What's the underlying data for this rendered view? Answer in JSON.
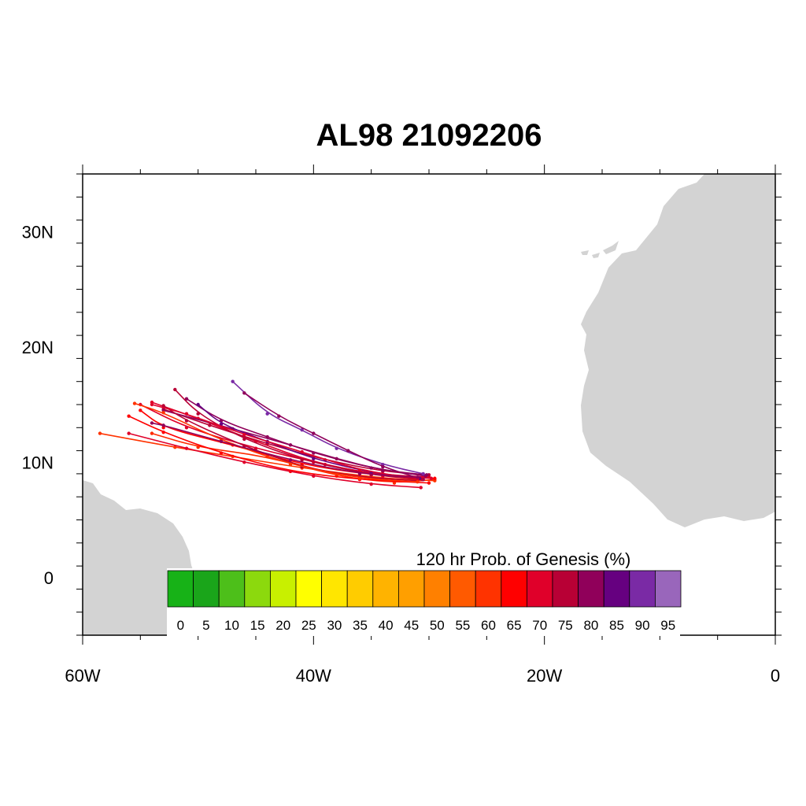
{
  "title": "AL98 21092206",
  "map": {
    "lon_range": [
      -60,
      0
    ],
    "lat_range": [
      -5,
      35
    ],
    "land_color": "#d3d3d3",
    "ocean_color": "#ffffff",
    "x_ticks": [
      {
        "lon": -60,
        "label": "60W"
      },
      {
        "lon": -40,
        "label": "40W"
      },
      {
        "lon": -20,
        "label": "20W"
      },
      {
        "lon": 0,
        "label": "0"
      }
    ],
    "y_ticks": [
      {
        "lat": 30,
        "label": "30N"
      },
      {
        "lat": 20,
        "label": "20N"
      },
      {
        "lat": 10,
        "label": "10N"
      },
      {
        "lat": 0,
        "label": "0"
      }
    ]
  },
  "colorbar": {
    "title": "120 hr Prob. of Genesis (%)",
    "labels": [
      "0",
      "5",
      "10",
      "15",
      "20",
      "25",
      "30",
      "35",
      "40",
      "45",
      "50",
      "55",
      "60",
      "65",
      "70",
      "75",
      "80",
      "85",
      "90",
      "95"
    ],
    "colors": [
      "#17b217",
      "#1aa51a",
      "#4dbf1a",
      "#8cd90d",
      "#c8f000",
      "#ffff00",
      "#ffe600",
      "#ffcc00",
      "#ffb300",
      "#ff9f00",
      "#ff8000",
      "#ff5a00",
      "#ff3300",
      "#ff0000",
      "#e0002a",
      "#b80035",
      "#90005a",
      "#660080",
      "#7a2aa5",
      "#9966bb"
    ]
  },
  "chart_data": {
    "type": "scatter",
    "title": "AL98 21092206",
    "description_units": "lon (deg E), lat (deg N)",
    "tracks": [
      {
        "color": "#ff2a00",
        "points": [
          [
            -29.5,
            8.5
          ],
          [
            -33,
            8.2
          ],
          [
            -38,
            8.8
          ],
          [
            -44,
            10.5
          ],
          [
            -50,
            11.3
          ],
          [
            -54,
            12.5
          ]
        ]
      },
      {
        "color": "#ff3300",
        "points": [
          [
            -29.5,
            8.4
          ],
          [
            -34,
            8.6
          ],
          [
            -41,
            9.5
          ],
          [
            -47,
            10.5
          ],
          [
            -52,
            11.3
          ],
          [
            -58.5,
            12.5
          ]
        ]
      },
      {
        "color": "#ff0000",
        "points": [
          [
            -29.5,
            8.6
          ],
          [
            -35,
            8.9
          ],
          [
            -41,
            9.8
          ],
          [
            -47,
            11.5
          ],
          [
            -53,
            13.0
          ],
          [
            -55,
            14.5
          ]
        ]
      },
      {
        "color": "#e0002a",
        "points": [
          [
            -29.8,
            8.6
          ],
          [
            -34,
            8.8
          ],
          [
            -39,
            9.8
          ],
          [
            -45,
            11.2
          ],
          [
            -51,
            13.0
          ],
          [
            -55,
            15.0
          ]
        ]
      },
      {
        "color": "#ff0000",
        "points": [
          [
            -30,
            8.2
          ],
          [
            -36,
            8.5
          ],
          [
            -42,
            9.2
          ],
          [
            -48,
            10.8
          ],
          [
            -53,
            12.6
          ],
          [
            -56,
            14.0
          ]
        ]
      },
      {
        "color": "#e0002a",
        "points": [
          [
            -30,
            8.7
          ],
          [
            -35,
            9.0
          ],
          [
            -40,
            10.0
          ],
          [
            -45,
            11.8
          ],
          [
            -50,
            13.8
          ],
          [
            -54,
            15.2
          ]
        ]
      },
      {
        "color": "#b80035",
        "points": [
          [
            -30,
            8.9
          ],
          [
            -34,
            9.2
          ],
          [
            -39,
            10.2
          ],
          [
            -44,
            11.6
          ],
          [
            -49,
            13.2
          ],
          [
            -53,
            14.6
          ]
        ]
      },
      {
        "color": "#90005a",
        "points": [
          [
            -30.2,
            8.9
          ],
          [
            -34,
            9.3
          ],
          [
            -38,
            10.3
          ],
          [
            -42,
            11.5
          ],
          [
            -47,
            12.9
          ],
          [
            -53,
            14.5
          ]
        ]
      },
      {
        "color": "#90005a",
        "points": [
          [
            -30.3,
            8.8
          ],
          [
            -35,
            9.5
          ],
          [
            -40,
            10.8
          ],
          [
            -44,
            12.2
          ],
          [
            -48,
            13.6
          ],
          [
            -51,
            15.5
          ]
        ]
      },
      {
        "color": "#7a2aa5",
        "points": [
          [
            -30.5,
            9.0
          ],
          [
            -34,
            9.8
          ],
          [
            -38,
            11.2
          ],
          [
            -41,
            12.8
          ],
          [
            -44,
            14.2
          ],
          [
            -47,
            17.0
          ]
        ]
      },
      {
        "color": "#90005a",
        "points": [
          [
            -30.5,
            8.5
          ],
          [
            -34,
            9.6
          ],
          [
            -37,
            11.0
          ],
          [
            -40,
            12.5
          ],
          [
            -43,
            14.0
          ],
          [
            -46,
            16.0
          ]
        ]
      },
      {
        "color": "#b80035",
        "points": [
          [
            -30.6,
            8.5
          ],
          [
            -35,
            8.9
          ],
          [
            -41,
            10.2
          ],
          [
            -46,
            12.0
          ],
          [
            -50,
            14.2
          ],
          [
            -52,
            16.3
          ]
        ]
      },
      {
        "color": "#e0002a",
        "points": [
          [
            -30.7,
            7.8
          ],
          [
            -35,
            8.1
          ],
          [
            -40,
            8.8
          ],
          [
            -46,
            10.0
          ],
          [
            -51,
            11.2
          ],
          [
            -56,
            12.5
          ]
        ]
      },
      {
        "color": "#660080",
        "points": [
          [
            -30.8,
            8.6
          ],
          [
            -35,
            9.1
          ],
          [
            -40,
            10.3
          ],
          [
            -44,
            11.8
          ],
          [
            -48,
            13.3
          ],
          [
            -50,
            15.0
          ]
        ]
      },
      {
        "color": "#b80035",
        "points": [
          [
            -31,
            8.4
          ],
          [
            -36,
            8.7
          ],
          [
            -41,
            9.6
          ],
          [
            -46,
            11.4
          ],
          [
            -51,
            13.6
          ],
          [
            -53,
            14.9
          ]
        ]
      },
      {
        "color": "#ff3300",
        "points": [
          [
            -31,
            8.3
          ],
          [
            -36,
            8.6
          ],
          [
            -42,
            9.8
          ],
          [
            -48,
            11.9
          ],
          [
            -53,
            14.3
          ],
          [
            -55.5,
            15.1
          ]
        ]
      },
      {
        "color": "#e0002a",
        "points": [
          [
            -31,
            8.6
          ],
          [
            -36,
            9.3
          ],
          [
            -41,
            10.9
          ],
          [
            -46,
            12.4
          ],
          [
            -51,
            14.2
          ],
          [
            -54,
            15.0
          ]
        ]
      },
      {
        "color": "#90005a",
        "points": [
          [
            -31,
            8.7
          ],
          [
            -36,
            9.0
          ],
          [
            -42,
            10.2
          ],
          [
            -48,
            11.8
          ],
          [
            -53,
            13.2
          ],
          [
            -54,
            13.4
          ]
        ]
      }
    ]
  }
}
